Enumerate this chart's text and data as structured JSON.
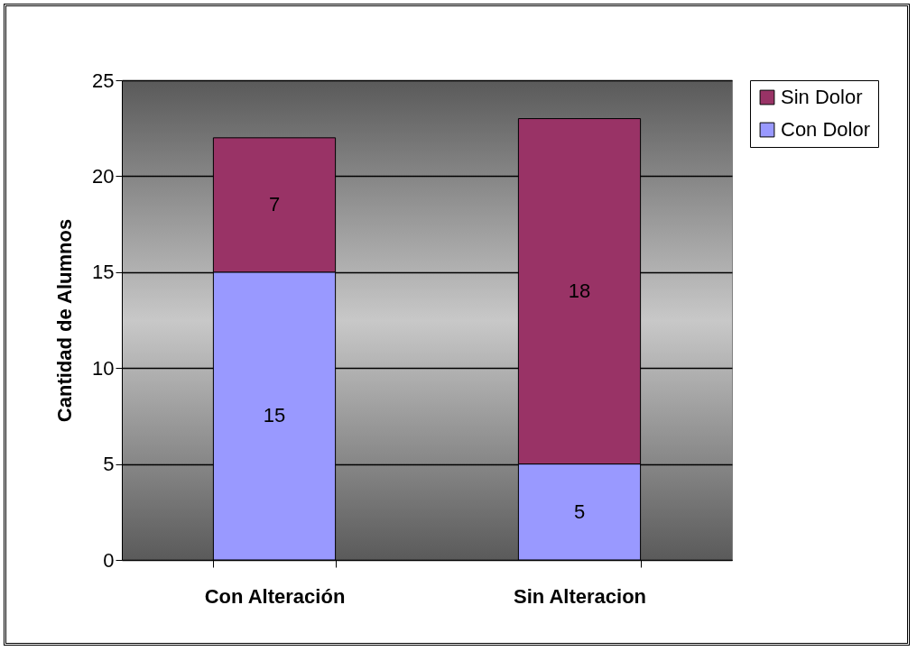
{
  "chart_data": {
    "type": "bar",
    "stacked": true,
    "ylabel": "Cantidad de Alumnos",
    "categories": [
      "Con Alteración",
      "Sin Alteracion"
    ],
    "series": [
      {
        "name": "Con Dolor",
        "color": "#9999ff",
        "values": [
          15,
          5
        ]
      },
      {
        "name": "Sin Dolor",
        "color": "#993366",
        "values": [
          7,
          18
        ]
      }
    ],
    "ylim": [
      0,
      25
    ],
    "yticks": [
      0,
      5,
      10,
      15,
      20,
      25
    ],
    "grid": "y",
    "legend": "right",
    "data_labels": true
  }
}
